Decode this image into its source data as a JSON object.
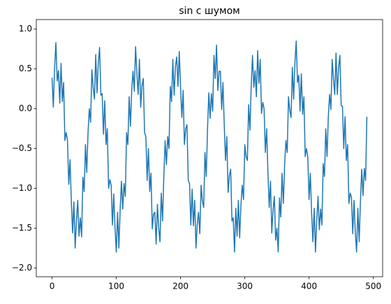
{
  "chart_data": {
    "type": "line",
    "title": "sin с шумом",
    "color": "#1f77b4",
    "x": [
      0,
      2,
      4,
      6,
      8,
      10,
      12,
      14,
      16,
      18,
      20,
      22,
      24,
      26,
      28,
      30,
      32,
      34,
      36,
      38,
      40,
      42,
      44,
      46,
      48,
      50,
      52,
      54,
      56,
      58,
      60,
      62,
      64,
      66,
      68,
      70,
      72,
      74,
      76,
      78,
      80,
      82,
      84,
      86,
      88,
      90,
      92,
      94,
      96,
      98,
      100,
      102,
      104,
      106,
      108,
      110,
      112,
      114,
      116,
      118,
      120,
      122,
      124,
      126,
      128,
      130,
      132,
      134,
      136,
      138,
      140,
      142,
      144,
      146,
      148,
      150,
      152,
      154,
      156,
      158,
      160,
      162,
      164,
      166,
      168,
      170,
      172,
      174,
      176,
      178,
      180,
      182,
      184,
      186,
      188,
      190,
      192,
      194,
      196,
      198,
      200,
      202,
      204,
      206,
      208,
      210,
      212,
      214,
      216,
      218,
      220,
      222,
      224,
      226,
      228,
      230,
      232,
      234,
      236,
      238,
      240,
      242,
      244,
      246,
      248,
      250,
      252,
      254,
      256,
      258,
      260,
      262,
      264,
      266,
      268,
      270,
      272,
      274,
      276,
      278,
      280,
      282,
      284,
      286,
      288,
      290,
      292,
      294,
      296,
      298,
      300,
      302,
      304,
      306,
      308,
      310,
      312,
      314,
      316,
      318,
      320,
      322,
      324,
      326,
      328,
      330,
      332,
      334,
      336,
      338,
      340,
      342,
      344,
      346,
      348,
      350,
      352,
      354,
      356,
      358,
      360,
      362,
      364,
      366,
      368,
      370,
      372,
      374,
      376,
      378,
      380,
      382,
      384,
      386,
      388,
      390,
      392,
      394,
      396,
      398,
      400,
      402,
      404,
      406,
      408,
      410,
      412,
      414,
      416,
      418,
      420,
      422,
      424,
      426,
      428,
      430,
      432,
      434,
      436,
      438,
      440,
      442,
      444,
      446,
      448,
      450,
      452,
      454,
      456,
      458,
      460,
      462,
      464,
      466,
      468,
      470,
      472,
      474,
      476,
      478,
      480,
      482,
      484,
      486,
      488,
      490
    ],
    "values": [
      0.39,
      0.02,
      0.52,
      0.83,
      0.35,
      0.48,
      0.07,
      0.57,
      0.09,
      0.33,
      -0.4,
      -0.3,
      -0.4,
      -0.95,
      -0.64,
      -1.16,
      -1.56,
      -1.17,
      -1.75,
      -1.4,
      -1.15,
      -1.6,
      -1.37,
      -1.61,
      -0.86,
      -1.04,
      -0.45,
      -0.8,
      -0.3,
      0.0,
      -0.17,
      0.49,
      0.27,
      0.12,
      0.68,
      0.2,
      0.58,
      0.77,
      0.17,
      0.19,
      -0.32,
      0.1,
      -0.45,
      -0.25,
      -1.0,
      -0.89,
      -0.96,
      -1.46,
      -1.07,
      -1.5,
      -1.8,
      -1.3,
      -1.75,
      -1.27,
      -0.91,
      -1.26,
      -0.94,
      -1.1,
      -0.3,
      -0.45,
      0.15,
      -0.22,
      0.24,
      0.47,
      0.22,
      0.78,
      0.45,
      0.18,
      0.62,
      0.02,
      0.29,
      0.38,
      -0.3,
      -0.35,
      -0.9,
      -0.5,
      -1.04,
      -0.81,
      -1.51,
      -1.32,
      -1.3,
      -1.7,
      -1.2,
      -1.5,
      -1.67,
      -1.06,
      -1.41,
      -0.84,
      -0.4,
      -0.7,
      -0.35,
      -0.5,
      0.28,
      0.09,
      0.62,
      0.17,
      0.53,
      0.65,
      0.28,
      0.72,
      0.27,
      -0.11,
      0.23,
      -0.45,
      -0.25,
      -0.2,
      -0.9,
      -0.94,
      -1.46,
      -1.01,
      -1.47,
      -1.15,
      -1.75,
      -1.45,
      -1.3,
      -1.57,
      -0.96,
      -1.16,
      -1.24,
      -0.55,
      -0.85,
      -0.25,
      0.2,
      -0.12,
      0.19,
      -0.03,
      0.67,
      0.38,
      0.8,
      0.23,
      0.47,
      0.47,
      -0.01,
      0.33,
      -0.2,
      -0.65,
      -0.35,
      -1.05,
      -0.84,
      -0.76,
      -1.41,
      -1.37,
      -1.8,
      -1.25,
      -1.6,
      -1.15,
      -1.62,
      -1.21,
      -0.96,
      -1.14,
      -0.45,
      -0.6,
      -0.65,
      0.05,
      -0.27,
      0.29,
      0.67,
      0.27,
      0.48,
      0.15,
      0.73,
      0.32,
      0.62,
      -0.06,
      0.08,
      0.0,
      -0.55,
      -0.25,
      -0.8,
      -1.24,
      -0.91,
      -1.56,
      -1.27,
      -1.1,
      -1.65,
      -1.5,
      -1.8,
      -1.12,
      -1.36,
      -0.81,
      -1.19,
      -0.7,
      -0.4,
      -0.55,
      0.15,
      -0.02,
      -0.11,
      0.52,
      0.12,
      0.58,
      0.85,
      0.33,
      0.42,
      -0.03,
      0.44,
      -0.07,
      0.15,
      -0.6,
      -0.5,
      -0.6,
      -1.14,
      -0.81,
      -1.31,
      -1.67,
      -1.25,
      -1.8,
      -1.4,
      -1.1,
      -1.52,
      -1.26,
      -1.46,
      -0.69,
      -0.85,
      -0.25,
      -0.6,
      -0.1,
      0.18,
      -0.01,
      0.62,
      0.37,
      0.18,
      0.7,
      0.18,
      0.52,
      0.67,
      0.04,
      0.03,
      -0.5,
      -0.1,
      -0.65,
      -0.45,
      -1.19,
      -1.06,
      -1.11,
      -1.57,
      -1.15,
      -1.55,
      -1.8,
      -1.25,
      -1.67,
      -1.16,
      -0.76,
      -1.09,
      -0.75,
      -0.9,
      -0.1
    ],
    "xlim": [
      -24.5,
      514.5
    ],
    "xticks": [
      0,
      100,
      200,
      300,
      400,
      500
    ],
    "ylim": [
      -2.11,
      1.12
    ],
    "yticks": [
      {
        "value": -2,
        "label": "−2.0"
      },
      {
        "value": -1.5,
        "label": "−1.5"
      },
      {
        "value": -1,
        "label": "−1.0"
      },
      {
        "value": -0.5,
        "label": "−0.5"
      },
      {
        "value": 0,
        "label": "0.0"
      },
      {
        "value": 0.5,
        "label": "0.5"
      },
      {
        "value": 1,
        "label": "1.0"
      }
    ],
    "grid": false
  }
}
